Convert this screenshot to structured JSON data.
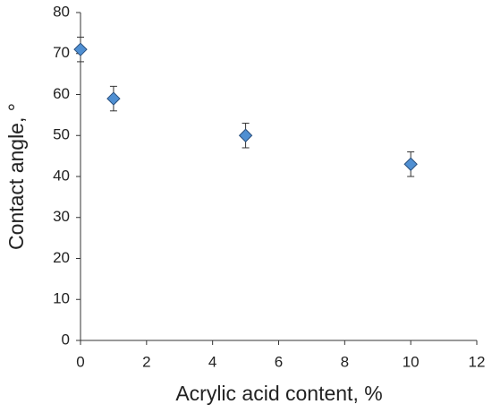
{
  "chart_data": {
    "type": "scatter",
    "x_label": "Acrylic acid content, %",
    "y_label": "Contact angle, °",
    "series": [
      {
        "color": "#4f8fd2",
        "x": [
          0,
          1,
          5,
          10
        ],
        "values": [
          71,
          59,
          50,
          43
        ],
        "errors": [
          3,
          3,
          3,
          3
        ]
      }
    ],
    "xlim": [
      0,
      12
    ],
    "xticks": [
      0,
      2,
      4,
      6,
      8,
      10,
      12
    ],
    "ylim": [
      0,
      80
    ],
    "yticks": [
      0,
      10,
      20,
      30,
      40,
      50,
      60,
      70,
      80
    ],
    "grid": false
  }
}
